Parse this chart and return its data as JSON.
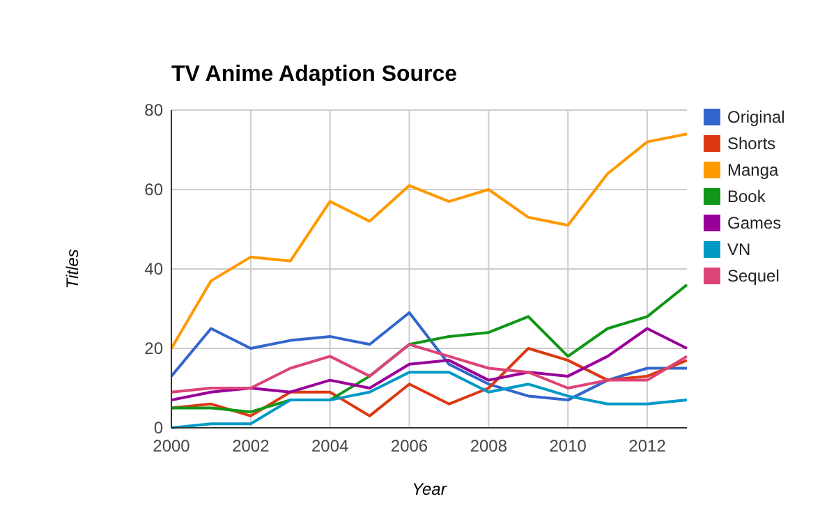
{
  "chart_data": {
    "type": "line",
    "title": "TV Anime Adaption Source",
    "xlabel": "Year",
    "ylabel": "Titles",
    "x": [
      2000,
      2001,
      2002,
      2003,
      2004,
      2005,
      2006,
      2007,
      2008,
      2009,
      2010,
      2011,
      2012,
      2013
    ],
    "xlim": [
      2000,
      2013
    ],
    "xticks": [
      2000,
      2002,
      2004,
      2006,
      2008,
      2010,
      2012
    ],
    "ylim": [
      0,
      80
    ],
    "yticks": [
      0,
      20,
      40,
      60,
      80
    ],
    "grid": true,
    "legend": "right",
    "line_style": "solid",
    "marker": "none",
    "series": [
      {
        "name": "Original",
        "color": "#3366cc",
        "values": [
          13,
          25,
          20,
          22,
          23,
          21,
          29,
          16,
          11,
          8,
          7,
          12,
          15,
          15
        ]
      },
      {
        "name": "Shorts",
        "color": "#dc3912",
        "values": [
          5,
          6,
          3,
          9,
          9,
          3,
          11,
          6,
          10,
          20,
          17,
          12,
          13,
          17
        ]
      },
      {
        "name": "Manga",
        "color": "#ff9900",
        "values": [
          20,
          37,
          43,
          42,
          57,
          52,
          61,
          57,
          60,
          53,
          51,
          64,
          72,
          74
        ]
      },
      {
        "name": "Book",
        "color": "#109618",
        "values": [
          5,
          5,
          4,
          7,
          7,
          13,
          21,
          23,
          24,
          28,
          18,
          25,
          28,
          36
        ]
      },
      {
        "name": "Games",
        "color": "#990099",
        "values": [
          7,
          9,
          10,
          9,
          12,
          10,
          16,
          17,
          12,
          14,
          13,
          18,
          25,
          20
        ]
      },
      {
        "name": "VN",
        "color": "#0099c6",
        "values": [
          0,
          1,
          1,
          7,
          7,
          9,
          14,
          14,
          9,
          11,
          8,
          6,
          6,
          7
        ]
      },
      {
        "name": "Sequel",
        "color": "#dd4477",
        "values": [
          9,
          10,
          10,
          15,
          18,
          13,
          21,
          18,
          15,
          14,
          10,
          12,
          12,
          18
        ]
      }
    ]
  }
}
